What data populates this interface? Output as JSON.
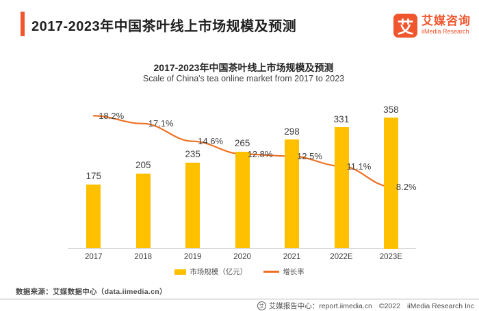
{
  "header": {
    "title": "2017-2023年中国茶叶线上市场规模及预测",
    "accent_color": "#F0562E",
    "logo": {
      "icon_char": "艾",
      "brand_cn": "艾媒咨询",
      "brand_en": "iiMedia Research"
    }
  },
  "chart_data": {
    "type": "bar",
    "title": "2017-2023年中国茶叶线上市场规模及预测",
    "subtitle": "Scale of China's tea online market from 2017 to 2023",
    "categories": [
      "2017",
      "2018",
      "2019",
      "2020",
      "2021",
      "2022E",
      "2023E"
    ],
    "series": [
      {
        "name": "市场规模（亿元）",
        "type": "bar",
        "color": "#FFC000",
        "values": [
          175,
          205,
          235,
          265,
          298,
          331,
          358
        ]
      },
      {
        "name": "增长率",
        "type": "line",
        "color": "#ED7022",
        "unit": "%",
        "values": [
          18.2,
          17.1,
          14.6,
          12.8,
          12.5,
          11.1,
          8.2
        ]
      }
    ],
    "xlabel": "",
    "ylabel": "",
    "bar_axis_range": [
      0,
      380
    ],
    "line_axis_range": [
      0,
      20
    ],
    "grid": false,
    "legend_position": "bottom"
  },
  "source_note": "数据来源：艾媒数据中心（data.iimedia.cn）",
  "footer": {
    "report_center": "艾媒报告中心：report.iimedia.cn",
    "copyright": "©2022",
    "company": "iiMedia Research  Inc"
  }
}
